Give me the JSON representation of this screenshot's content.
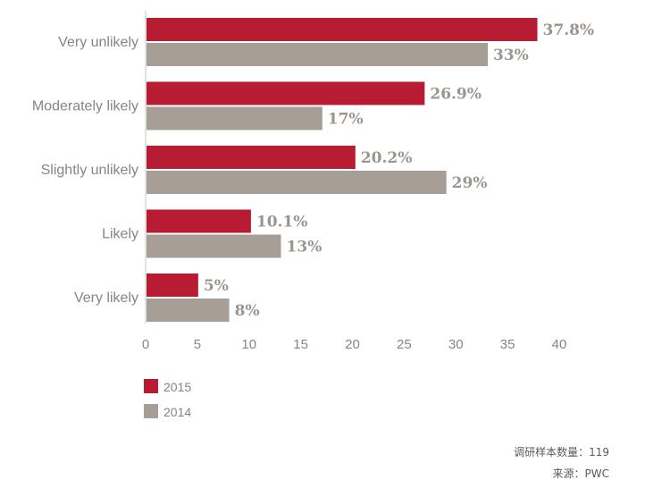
{
  "chart_data": {
    "type": "bar",
    "orientation": "horizontal",
    "categories": [
      "Very unlikely",
      "Moderately likely",
      "Slightly unlikely",
      "Likely",
      "Very likely"
    ],
    "series": [
      {
        "name": "2015",
        "color": "#b81c32",
        "values": [
          37.8,
          26.9,
          20.2,
          10.1,
          5
        ],
        "labels": [
          "37.8%",
          "26.9%",
          "20.2%",
          "10.1%",
          "5%"
        ]
      },
      {
        "name": "2014",
        "color": "#a69d95",
        "values": [
          33,
          17,
          29,
          13,
          8
        ],
        "labels": [
          "33%",
          "17%",
          "29%",
          "13%",
          "8%"
        ]
      }
    ],
    "xlim": [
      0,
      40
    ],
    "xticks": [
      "0",
      "5",
      "10",
      "15",
      "20",
      "25",
      "30",
      "35",
      "40"
    ],
    "grid": false,
    "legend_position": "bottom-left"
  },
  "footer": {
    "sample_size": "调研样本数量：119",
    "source": "来源：PWC"
  }
}
